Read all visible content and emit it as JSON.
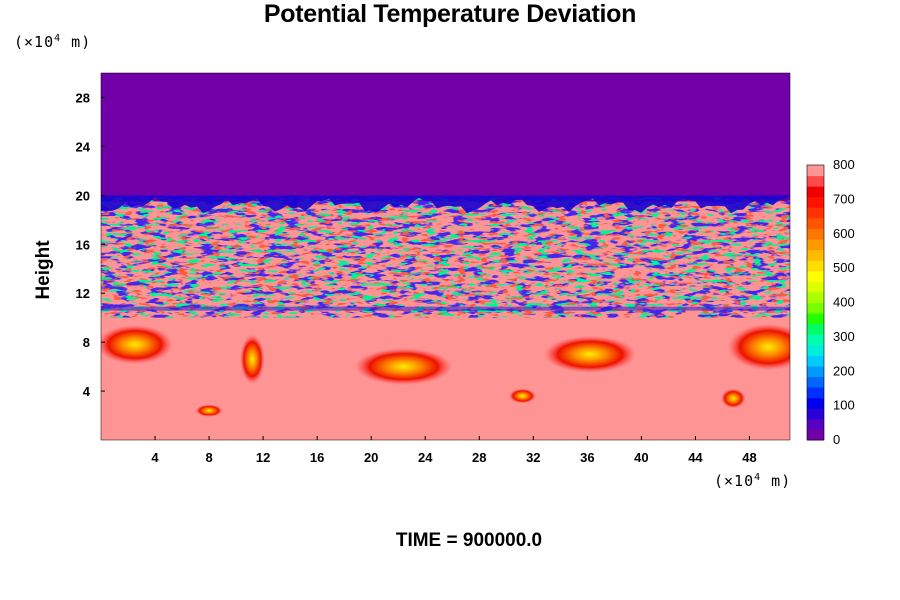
{
  "chart_data": {
    "type": "heatmap",
    "title": "Potential Temperature Deviation",
    "ylabel": "Height",
    "x_unit": {
      "prefix": "(×10",
      "exp": "4",
      "suffix": " m)"
    },
    "y_unit": {
      "prefix": "(×10",
      "exp": "4",
      "suffix": " m)"
    },
    "xlim": [
      0,
      51
    ],
    "ylim": [
      0,
      30
    ],
    "x_ticks": [
      "4",
      "8",
      "12",
      "16",
      "20",
      "24",
      "28",
      "32",
      "36",
      "40",
      "44",
      "48"
    ],
    "x_tick_values": [
      4,
      8,
      12,
      16,
      20,
      24,
      28,
      32,
      36,
      40,
      44,
      48
    ],
    "y_ticks": [
      "4",
      "8",
      "12",
      "16",
      "20",
      "24",
      "28"
    ],
    "y_tick_values": [
      4,
      8,
      12,
      16,
      20,
      24,
      28
    ],
    "colorbar": {
      "range": [
        0,
        800
      ],
      "labels": [
        "0",
        "100",
        "200",
        "300",
        "400",
        "500",
        "600",
        "700",
        "800"
      ],
      "label_values": [
        0,
        100,
        200,
        300,
        400,
        500,
        600,
        700,
        800
      ],
      "colors": [
        "#7200a8",
        "#5a00c0",
        "#2a00d8",
        "#0000f0",
        "#0030ff",
        "#0066ff",
        "#0099ff",
        "#00ccff",
        "#00eedd",
        "#00ffaa",
        "#00ff66",
        "#22ff00",
        "#77ff00",
        "#aaff00",
        "#ddff00",
        "#ffff00",
        "#ffdd00",
        "#ffbb00",
        "#ff9900",
        "#ff7700",
        "#ff5500",
        "#ff3300",
        "#ff1100",
        "#ee0000",
        "#ff4a4a",
        "#ff9494"
      ]
    },
    "regions": {
      "upper_value": 0,
      "lower_value": 800,
      "interface_height": 19.5,
      "turbulent_band": [
        10,
        19.8
      ]
    },
    "time_label": "TIME = 900000.0"
  }
}
